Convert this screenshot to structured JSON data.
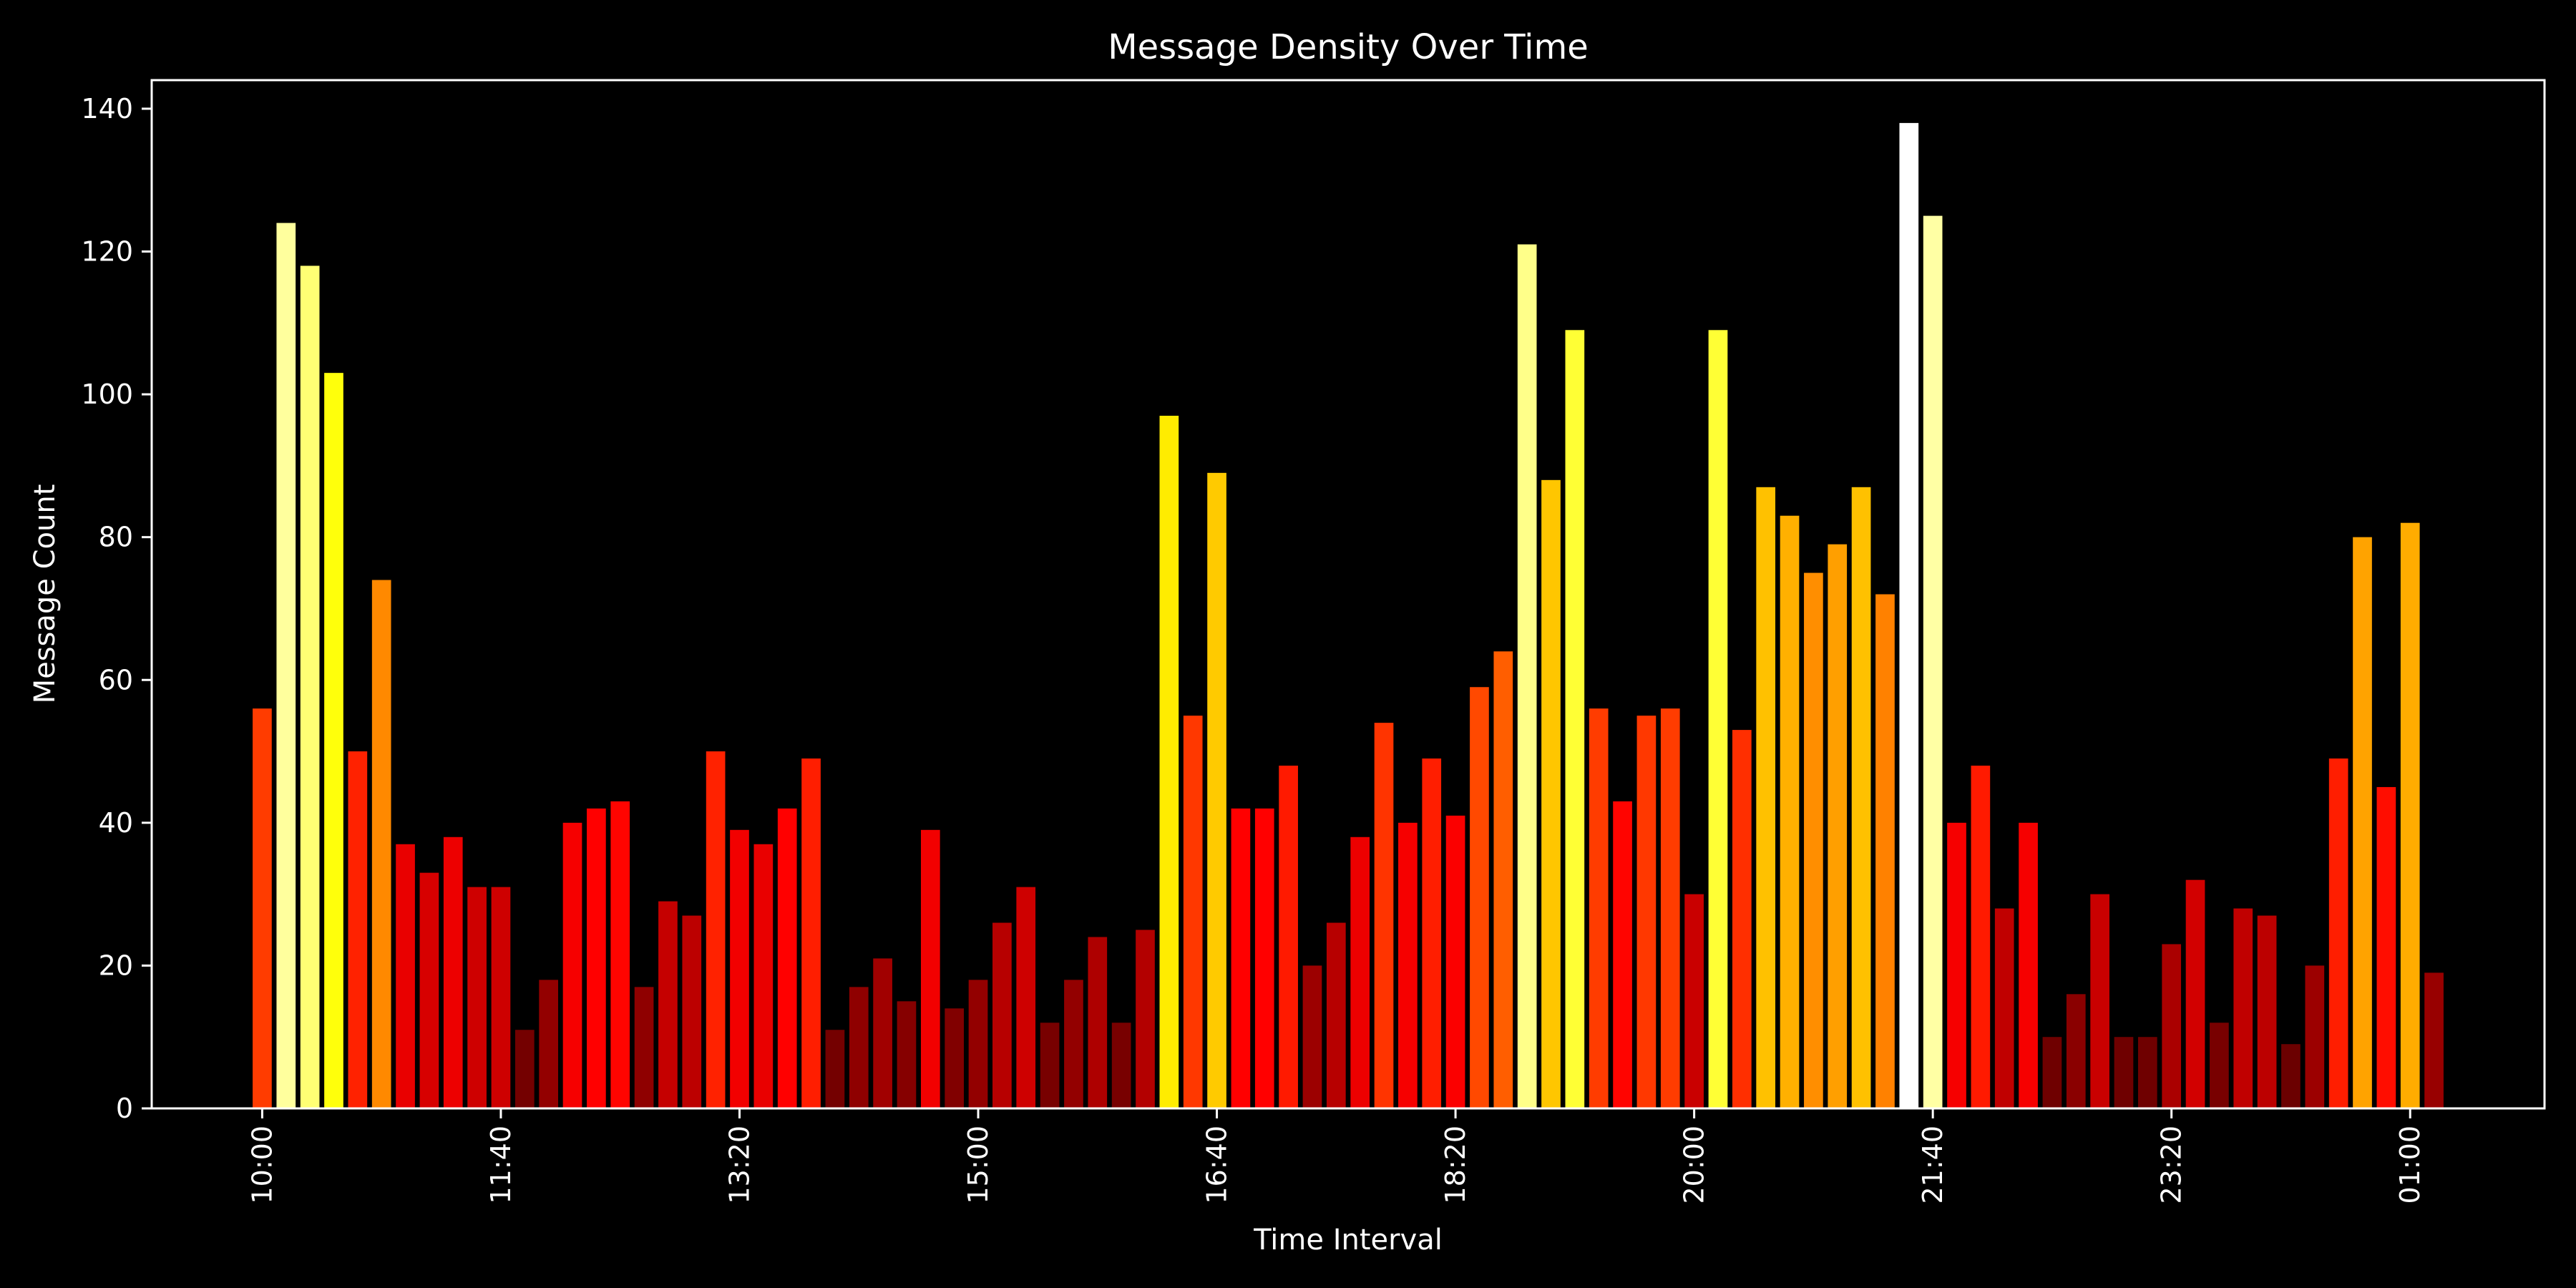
{
  "chart_data": {
    "type": "bar",
    "title": "Message Density Over Time",
    "xlabel": "Time Interval",
    "ylabel": "Message Count",
    "ylim": [
      0,
      144
    ],
    "y_ticks": [
      0,
      20,
      40,
      60,
      80,
      100,
      120,
      140
    ],
    "x_tick_labels": [
      "10:00",
      "11:40",
      "13:20",
      "15:00",
      "16:40",
      "18:20",
      "20:00",
      "21:40",
      "23:20",
      "01:00"
    ],
    "interval_minutes": 10,
    "categories": [
      "10:00",
      "10:10",
      "10:20",
      "10:30",
      "10:40",
      "10:50",
      "11:00",
      "11:10",
      "11:20",
      "11:30",
      "11:40",
      "11:50",
      "12:00",
      "12:10",
      "12:20",
      "12:30",
      "12:40",
      "12:50",
      "13:00",
      "13:10",
      "13:20",
      "13:30",
      "13:40",
      "13:50",
      "14:00",
      "14:10",
      "14:20",
      "14:30",
      "14:40",
      "14:50",
      "15:00",
      "15:10",
      "15:20",
      "15:30",
      "15:40",
      "15:50",
      "16:00",
      "16:10",
      "16:20",
      "16:30",
      "16:40",
      "16:50",
      "17:00",
      "17:10",
      "17:20",
      "17:30",
      "17:40",
      "17:50",
      "18:00",
      "18:10",
      "18:20",
      "18:30",
      "18:40",
      "18:50",
      "19:00",
      "19:10",
      "19:20",
      "19:30",
      "19:40",
      "19:50",
      "20:00",
      "20:10",
      "20:20",
      "20:30",
      "20:40",
      "20:50",
      "21:00",
      "21:10",
      "21:20",
      "21:30",
      "21:40",
      "21:50",
      "22:00",
      "22:10",
      "22:20",
      "22:30",
      "22:40",
      "22:50",
      "23:00",
      "23:10",
      "23:20",
      "23:30",
      "23:40",
      "23:50",
      "00:00",
      "00:10",
      "00:20",
      "00:30",
      "00:40",
      "00:50",
      "01:00",
      "01:10"
    ],
    "values": [
      56,
      124,
      118,
      103,
      50,
      74,
      37,
      33,
      38,
      31,
      31,
      11,
      18,
      40,
      42,
      43,
      17,
      29,
      27,
      50,
      39,
      37,
      42,
      49,
      11,
      17,
      21,
      15,
      39,
      14,
      18,
      26,
      31,
      12,
      18,
      24,
      12,
      25,
      97,
      55,
      89,
      42,
      42,
      48,
      20,
      26,
      38,
      54,
      40,
      49,
      41,
      59,
      64,
      121,
      88,
      109,
      56,
      43,
      55,
      56,
      30,
      109,
      53,
      87,
      83,
      75,
      79,
      87,
      72,
      138,
      125,
      40,
      48,
      28,
      40,
      10,
      16,
      30,
      10,
      10,
      23,
      32,
      12,
      28,
      27,
      9,
      20,
      49,
      80,
      45,
      82,
      19
    ],
    "colormap": "hot",
    "grid": false,
    "background": "#000000",
    "foreground": "#ffffff"
  }
}
